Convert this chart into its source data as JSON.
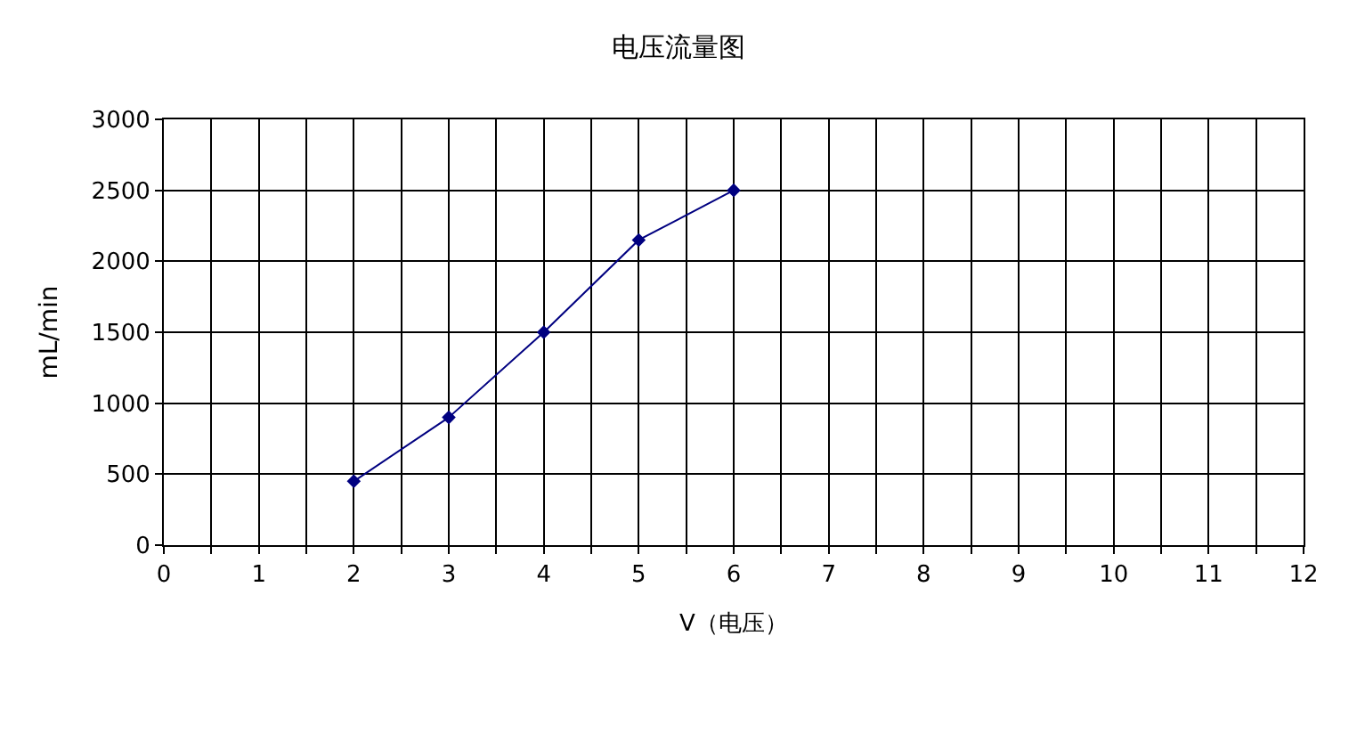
{
  "chart_data": {
    "type": "line",
    "title": "电压流量图",
    "xlabel": "V（电压）",
    "ylabel": "mL/min",
    "x": [
      2,
      3,
      4,
      5,
      6
    ],
    "series": [
      {
        "color": "#000080",
        "values": [
          450,
          900,
          1500,
          2150,
          2500
        ]
      }
    ],
    "xlim": [
      0,
      12
    ],
    "xticks": [
      0,
      {
        "value": 0.5,
        "label": null
      },
      1,
      {
        "value": 1.5,
        "label": null
      },
      2,
      {
        "value": 2.5,
        "label": null
      },
      3,
      {
        "value": 3.5,
        "label": null
      },
      4,
      {
        "value": 4.5,
        "label": null
      },
      5,
      {
        "value": 5.5,
        "label": null
      },
      6,
      {
        "value": 6.5,
        "label": null
      },
      7,
      {
        "value": 7.5,
        "label": null
      },
      8,
      {
        "value": 8.5,
        "label": null
      },
      9,
      {
        "value": 9.5,
        "label": null
      },
      10,
      {
        "value": 10.5,
        "label": null
      },
      11,
      {
        "value": 11.5,
        "label": null
      },
      12
    ],
    "ylim": [
      0,
      3000
    ],
    "yticks": [
      0,
      500,
      1000,
      1500,
      2000,
      2500,
      3000
    ],
    "grid": true,
    "marker": "diamond",
    "line_style": "solid"
  }
}
